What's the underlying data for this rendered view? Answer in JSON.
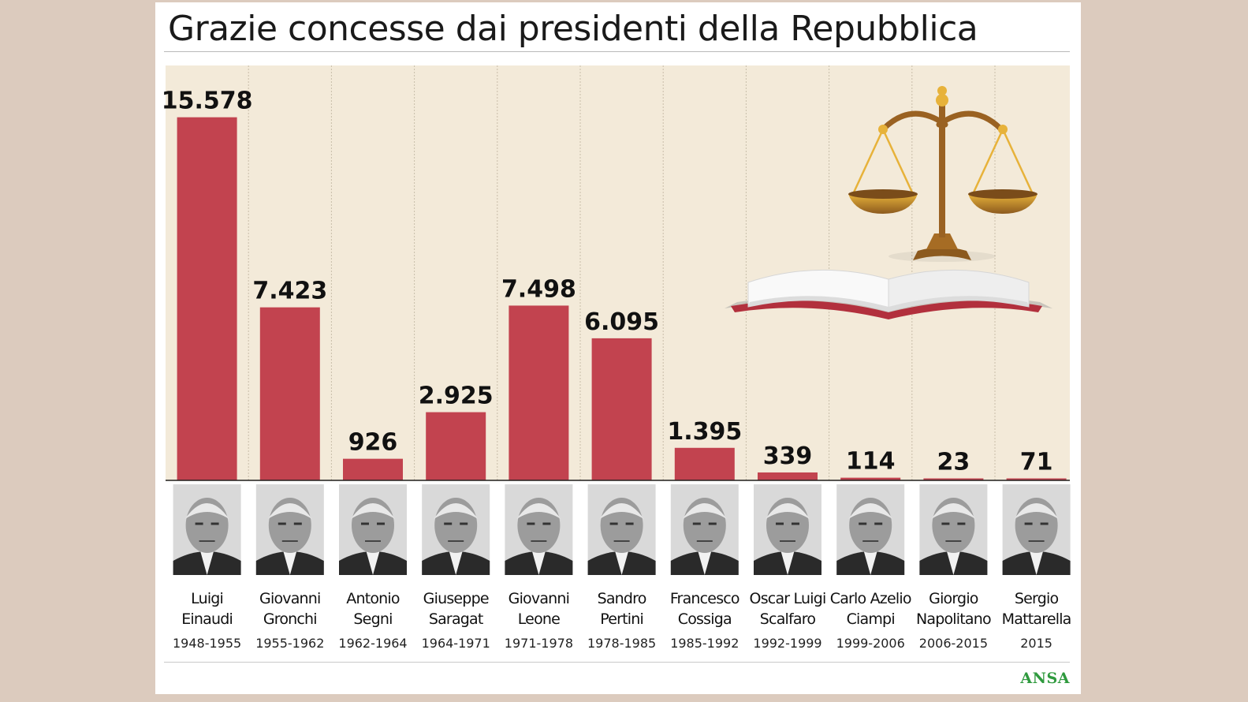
{
  "title": "Grazie concesse dai presidenti della Repubblica",
  "source": "ANSA",
  "colors": {
    "bar": "#c2434f",
    "plot_background": "#f3ead9",
    "page_background": "#dccbbe",
    "source": "#2f9a3e"
  },
  "chart_data": {
    "type": "bar",
    "title": "Grazie concesse dai presidenti della Repubblica",
    "xlabel": "",
    "ylabel": "",
    "ylim": [
      0,
      17800
    ],
    "grid": false,
    "legend": "none",
    "categories": [
      {
        "first": "Luigi",
        "last": "Einaudi",
        "years": "1948-1955"
      },
      {
        "first": "Giovanni",
        "last": "Gronchi",
        "years": "1955-1962"
      },
      {
        "first": "Antonio",
        "last": "Segni",
        "years": "1962-1964"
      },
      {
        "first": "Giuseppe",
        "last": "Saragat",
        "years": "1964-1971"
      },
      {
        "first": "Giovanni",
        "last": "Leone",
        "years": "1971-1978"
      },
      {
        "first": "Sandro",
        "last": "Pertini",
        "years": "1978-1985"
      },
      {
        "first": "Francesco",
        "last": "Cossiga",
        "years": "1985-1992"
      },
      {
        "first": "Oscar Luigi",
        "last": "Scalfaro",
        "years": "1992-1999"
      },
      {
        "first": "Carlo Azelio",
        "last": "Ciampi",
        "years": "1999-2006"
      },
      {
        "first": "Giorgio",
        "last": "Napolitano",
        "years": "2006-2015"
      },
      {
        "first": "Sergio",
        "last": "Mattarella",
        "years": "2015"
      }
    ],
    "values": [
      15578,
      7423,
      926,
      2925,
      7498,
      6095,
      1395,
      339,
      114,
      23,
      71
    ],
    "value_labels": [
      "15.578",
      "7.423",
      "926",
      "2.925",
      "7.498",
      "6.095",
      "1.395",
      "339",
      "114",
      "23",
      "71"
    ]
  }
}
